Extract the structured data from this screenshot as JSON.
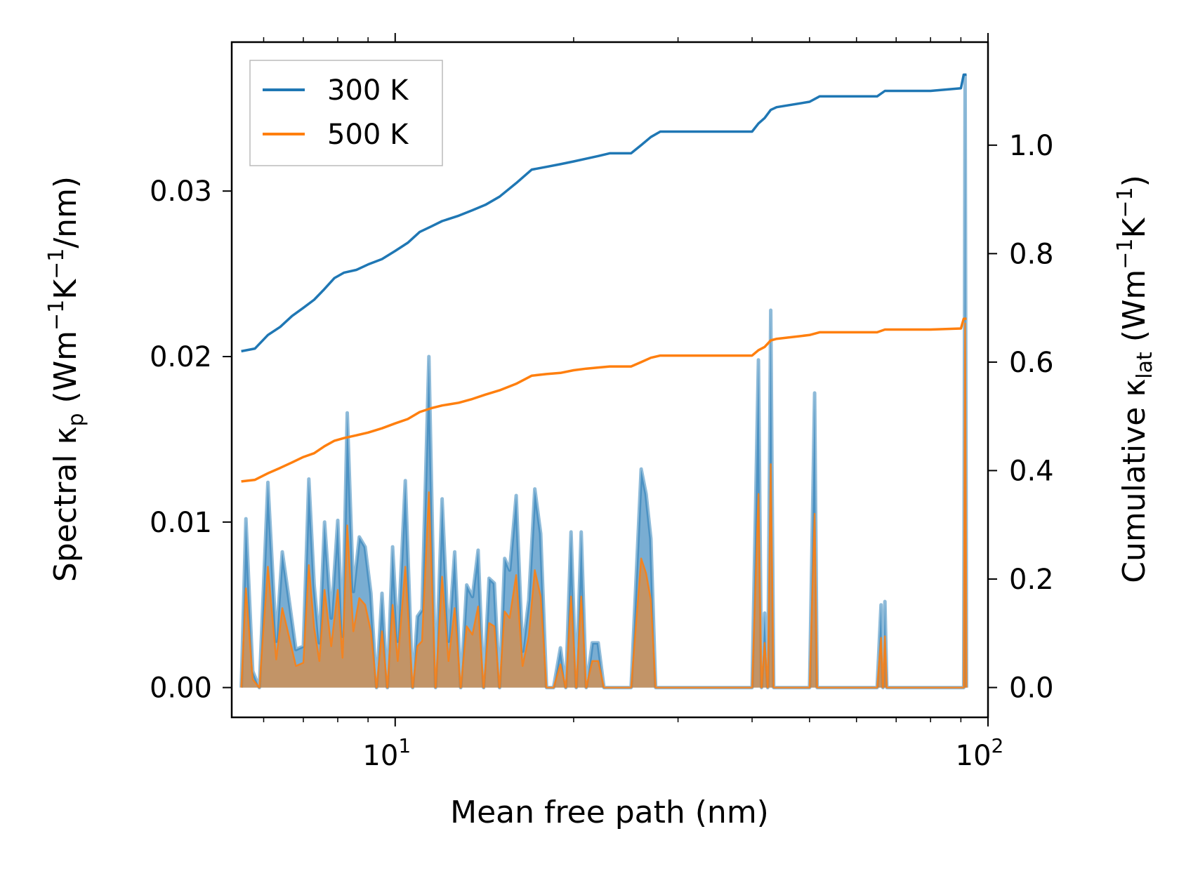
{
  "chart_data": {
    "type": "line",
    "title": "",
    "xlabel": "Mean free path (nm)",
    "x_scale": "log",
    "xlim": [
      5.3,
      100
    ],
    "x_ticks": [
      {
        "value": 10,
        "base": "10",
        "exp": "1"
      },
      {
        "value": 100,
        "base": "10",
        "exp": "2"
      }
    ],
    "left_axis": {
      "label_main": "Spectral κ",
      "label_sub": "p",
      "label_units": " (Wm",
      "label_sup1": "−1",
      "label_mid": "K",
      "label_sup2": "−1",
      "label_end": "/nm)",
      "ylim": [
        -0.0018,
        0.039
      ],
      "ticks": [
        0.0,
        0.01,
        0.02,
        0.03
      ],
      "tick_labels": [
        "0.00",
        "0.01",
        "0.02",
        "0.03"
      ]
    },
    "right_axis": {
      "label_main": "Cumulative κ",
      "label_sub": "lat",
      "label_units": " (Wm",
      "label_sup1": "−1",
      "label_mid": "K",
      "label_sup2": "−1",
      "label_end": ")",
      "ylim": [
        -0.055,
        1.19
      ],
      "ticks": [
        0.0,
        0.2,
        0.4,
        0.6,
        0.8,
        1.0
      ],
      "tick_labels": [
        "0.0",
        "0.2",
        "0.4",
        "0.6",
        "0.8",
        "1.0"
      ]
    },
    "legend": {
      "placement": "top-left",
      "entries": [
        {
          "label": "300 K",
          "color": "#1f77b4"
        },
        {
          "label": "500 K",
          "color": "#ff7f0e"
        }
      ]
    },
    "spectral": {
      "300 K": {
        "color": "#1f77b4",
        "x": [
          5.5,
          5.6,
          5.75,
          5.9,
          6.1,
          6.3,
          6.45,
          6.6,
          6.8,
          7.0,
          7.15,
          7.3,
          7.45,
          7.6,
          7.8,
          8.0,
          8.15,
          8.3,
          8.5,
          8.7,
          8.9,
          9.1,
          9.3,
          9.5,
          9.7,
          9.9,
          10.1,
          10.4,
          10.7,
          10.9,
          11.1,
          11.4,
          11.7,
          12.0,
          12.3,
          12.6,
          12.9,
          13.2,
          13.5,
          13.8,
          14.1,
          14.4,
          14.7,
          15.0,
          15.3,
          15.6,
          16.0,
          16.4,
          16.8,
          17.2,
          17.6,
          18.0,
          18.5,
          19.0,
          19.4,
          19.8,
          20.2,
          20.6,
          21.0,
          21.5,
          22.0,
          22.5,
          23.0,
          25.0,
          26.0,
          26.5,
          27.0,
          27.5,
          28.0,
          28.5,
          29.0,
          30.0,
          40.0,
          41.0,
          41.5,
          42.0,
          42.5,
          43.0,
          43.5,
          44.0,
          44.5,
          50.0,
          51.0,
          51.5,
          52.0,
          65.0,
          66.0,
          66.5,
          67.0,
          67.5,
          68.0,
          69.0,
          90.0,
          91.0,
          91.5,
          92.0
        ],
        "values": [
          0.0,
          0.0102,
          0.001,
          0.0,
          0.0124,
          0.0028,
          0.0082,
          0.0057,
          0.0023,
          0.0025,
          0.0126,
          0.0062,
          0.0027,
          0.01,
          0.0042,
          0.0101,
          0.0031,
          0.0166,
          0.0058,
          0.0091,
          0.0085,
          0.0057,
          0.0,
          0.0057,
          0.0,
          0.0085,
          0.0028,
          0.0125,
          0.0,
          0.0043,
          0.0047,
          0.02,
          0.0,
          0.0114,
          0.0028,
          0.0082,
          0.0,
          0.0062,
          0.0055,
          0.0083,
          0.0,
          0.0066,
          0.0063,
          0.0,
          0.0078,
          0.0071,
          0.0116,
          0.0022,
          0.0053,
          0.012,
          0.0093,
          0.0,
          0.0,
          0.0024,
          0.0,
          0.0094,
          0.0,
          0.0094,
          0.0,
          0.0027,
          0.0027,
          0.0,
          0.0,
          0.0,
          0.0132,
          0.0117,
          0.009,
          0.0,
          0.0,
          0.0,
          0.0,
          0.0,
          0.0,
          0.0198,
          0.0,
          0.0045,
          0.0,
          0.0228,
          0.0,
          0.0,
          0.0,
          0.0,
          0.0178,
          0.0,
          0.0,
          0.0,
          0.005,
          0.0,
          0.0052,
          0.0,
          0.0,
          0.0,
          0.0,
          0.0,
          0.037,
          0.0
        ]
      },
      "500 K": {
        "color": "#ff7f0e",
        "x": [
          5.5,
          5.6,
          5.75,
          5.9,
          6.1,
          6.3,
          6.45,
          6.6,
          6.8,
          7.0,
          7.15,
          7.3,
          7.45,
          7.6,
          7.8,
          8.0,
          8.15,
          8.3,
          8.5,
          8.7,
          8.9,
          9.1,
          9.3,
          9.5,
          9.7,
          9.9,
          10.1,
          10.4,
          10.7,
          10.9,
          11.1,
          11.4,
          11.7,
          12.0,
          12.3,
          12.6,
          12.9,
          13.2,
          13.5,
          13.8,
          14.1,
          14.4,
          14.7,
          15.0,
          15.3,
          15.6,
          16.0,
          16.4,
          16.8,
          17.2,
          17.6,
          18.0,
          18.5,
          19.0,
          19.4,
          19.8,
          20.2,
          20.6,
          21.0,
          21.5,
          22.0,
          22.5,
          23.0,
          25.0,
          26.0,
          26.5,
          27.0,
          27.5,
          28.0,
          28.5,
          29.0,
          30.0,
          40.0,
          41.0,
          41.5,
          42.0,
          42.5,
          43.0,
          43.5,
          44.0,
          44.5,
          50.0,
          51.0,
          51.5,
          52.0,
          65.0,
          66.0,
          66.5,
          67.0,
          67.5,
          68.0,
          69.0,
          90.0,
          91.0,
          91.5,
          92.0
        ],
        "values": [
          0.0,
          0.006,
          0.0005,
          0.0,
          0.0073,
          0.0017,
          0.0048,
          0.0033,
          0.0013,
          0.0015,
          0.0074,
          0.0036,
          0.0016,
          0.0059,
          0.0025,
          0.0059,
          0.0018,
          0.0098,
          0.0034,
          0.0054,
          0.005,
          0.0034,
          0.0,
          0.0034,
          0.0,
          0.005,
          0.0016,
          0.0073,
          0.0,
          0.0025,
          0.0028,
          0.0118,
          0.0,
          0.0067,
          0.0016,
          0.0048,
          0.0,
          0.0037,
          0.0032,
          0.0049,
          0.0,
          0.0039,
          0.0037,
          0.0,
          0.0046,
          0.0042,
          0.0068,
          0.0013,
          0.0031,
          0.0071,
          0.0055,
          0.0,
          0.0,
          0.0014,
          0.0,
          0.0055,
          0.0,
          0.0055,
          0.0,
          0.0016,
          0.0016,
          0.0,
          0.0,
          0.0,
          0.0078,
          0.0069,
          0.0053,
          0.0,
          0.0,
          0.0,
          0.0,
          0.0,
          0.0,
          0.0117,
          0.0,
          0.0027,
          0.0,
          0.0135,
          0.0,
          0.0,
          0.0,
          0.0,
          0.0105,
          0.0,
          0.0,
          0.0,
          0.003,
          0.0,
          0.0031,
          0.0,
          0.0,
          0.0,
          0.0,
          0.0,
          0.022,
          0.0
        ]
      }
    },
    "cumulative": {
      "300 K": {
        "color": "#1f77b4",
        "x": [
          5.5,
          5.8,
          6.1,
          6.4,
          6.7,
          7.0,
          7.3,
          7.6,
          7.9,
          8.2,
          8.6,
          9.0,
          9.5,
          10.0,
          10.5,
          11.0,
          11.5,
          12.0,
          12.8,
          13.5,
          14.2,
          15.0,
          16.0,
          17.0,
          18.0,
          19.0,
          20.0,
          21.0,
          22.0,
          23.0,
          25.0,
          26.0,
          27.0,
          28.0,
          30.0,
          35.0,
          40.0,
          41.0,
          42.0,
          43.0,
          44.0,
          50.0,
          52.0,
          60.0,
          65.0,
          67.0,
          70.0,
          80.0,
          90.0,
          91.0,
          92.0
        ],
        "values": [
          0.62,
          0.625,
          0.65,
          0.665,
          0.685,
          0.7,
          0.715,
          0.735,
          0.755,
          0.765,
          0.77,
          0.78,
          0.79,
          0.805,
          0.82,
          0.84,
          0.85,
          0.86,
          0.87,
          0.88,
          0.89,
          0.905,
          0.93,
          0.955,
          0.96,
          0.965,
          0.97,
          0.975,
          0.98,
          0.985,
          0.985,
          1.0,
          1.015,
          1.025,
          1.025,
          1.025,
          1.025,
          1.04,
          1.05,
          1.065,
          1.07,
          1.08,
          1.09,
          1.09,
          1.09,
          1.1,
          1.1,
          1.1,
          1.105,
          1.13,
          1.13
        ]
      },
      "500 K": {
        "color": "#ff7f0e",
        "x": [
          5.5,
          5.8,
          6.1,
          6.4,
          6.7,
          7.0,
          7.3,
          7.6,
          7.9,
          8.2,
          8.6,
          9.0,
          9.5,
          10.0,
          10.5,
          11.0,
          11.5,
          12.0,
          12.8,
          13.5,
          14.2,
          15.0,
          16.0,
          17.0,
          18.0,
          19.0,
          20.0,
          21.0,
          22.0,
          23.0,
          25.0,
          26.0,
          27.0,
          28.0,
          30.0,
          35.0,
          40.0,
          41.0,
          42.0,
          43.0,
          44.0,
          50.0,
          52.0,
          60.0,
          65.0,
          67.0,
          70.0,
          80.0,
          90.0,
          91.0,
          92.0
        ],
        "values": [
          0.38,
          0.383,
          0.395,
          0.405,
          0.415,
          0.425,
          0.432,
          0.445,
          0.455,
          0.46,
          0.465,
          0.47,
          0.478,
          0.487,
          0.495,
          0.508,
          0.515,
          0.52,
          0.525,
          0.532,
          0.54,
          0.548,
          0.56,
          0.575,
          0.578,
          0.58,
          0.585,
          0.588,
          0.59,
          0.592,
          0.592,
          0.6,
          0.608,
          0.612,
          0.612,
          0.612,
          0.612,
          0.622,
          0.628,
          0.64,
          0.643,
          0.65,
          0.655,
          0.655,
          0.655,
          0.66,
          0.66,
          0.66,
          0.662,
          0.68,
          0.68
        ]
      }
    }
  }
}
